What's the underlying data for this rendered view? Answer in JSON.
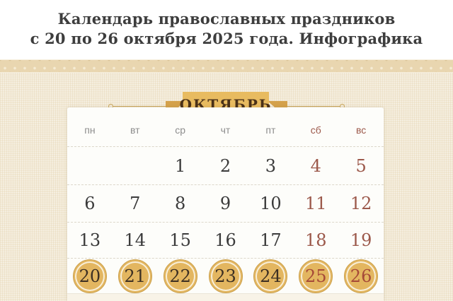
{
  "header": {
    "title_line1": "Календарь православных праздников",
    "title_line2": "с 20 по 26 октября 2025 года. Инфографика"
  },
  "calendar": {
    "month": "ОКТЯБРЬ",
    "day_headers": [
      "пн",
      "вт",
      "ср",
      "чт",
      "пт",
      "сб",
      "вс"
    ],
    "weeks": [
      [
        "",
        "",
        "1",
        "2",
        "3",
        "4",
        "5"
      ],
      [
        "6",
        "7",
        "8",
        "9",
        "10",
        "11",
        "12"
      ],
      [
        "13",
        "14",
        "15",
        "16",
        "17",
        "18",
        "19"
      ],
      [
        "20",
        "21",
        "22",
        "23",
        "24",
        "25",
        "26"
      ]
    ],
    "highlighted_dates": [
      "20",
      "21",
      "22",
      "23",
      "24",
      "25",
      "26"
    ],
    "weekend_columns": [
      "сб",
      "вс"
    ]
  },
  "colors": {
    "accent_gold": "#e8bb60",
    "fold_gold": "#d4a14a",
    "weekend_red": "#9c594b",
    "circle_date_red": "#a64a38",
    "weekday_dark": "#3b3b3b",
    "background_beige": "#f2e9d5",
    "band_beige": "#e9d6b0"
  }
}
